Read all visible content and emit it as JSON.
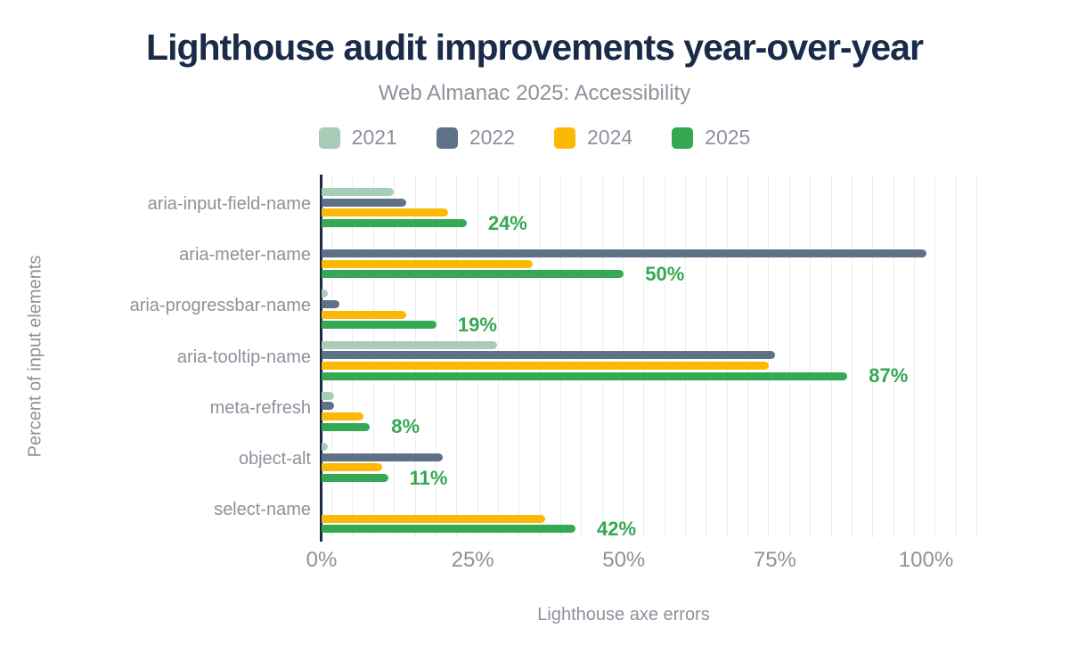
{
  "chart_data": {
    "type": "bar",
    "orientation": "horizontal",
    "title": "Lighthouse audit improvements year-over-year",
    "subtitle": "Web Almanac 2025: Accessibility",
    "categories": [
      "aria-input-field-name",
      "aria-meter-name",
      "aria-progressbar-name",
      "aria-tooltip-name",
      "meta-refresh",
      "object-alt",
      "select-name"
    ],
    "series": [
      {
        "name": "2021",
        "color": "#a9ccb8",
        "values": [
          12,
          null,
          1,
          29,
          2,
          1,
          null
        ]
      },
      {
        "name": "2022",
        "color": "#5f7186",
        "values": [
          14,
          100,
          3,
          75,
          2,
          20,
          null
        ]
      },
      {
        "name": "2024",
        "color": "#fbb905",
        "values": [
          21,
          35,
          14,
          74,
          7,
          10,
          37
        ]
      },
      {
        "name": "2025",
        "color": "#34a853",
        "values": [
          24,
          50,
          19,
          87,
          8,
          11,
          42
        ]
      }
    ],
    "annotations": {
      "series": "2025",
      "labels": [
        "24%",
        "50%",
        "19%",
        "87%",
        "8%",
        "11%",
        "42%"
      ],
      "color": "#34a853"
    },
    "x_ticks": [
      {
        "label": "0%",
        "value": 0
      },
      {
        "label": "25%",
        "value": 25
      },
      {
        "label": "50%",
        "value": 50
      },
      {
        "label": "75%",
        "value": 75
      },
      {
        "label": "100%",
        "value": 100
      }
    ],
    "xlim": [
      0,
      100
    ],
    "xlabel": "Lighthouse axe errors",
    "ylabel": "Percent of input elements",
    "legend_position": "top",
    "grid": "minor-vertical"
  },
  "colors": {
    "title": "#1a2b49",
    "axis": "#1c2b44",
    "muted_text": "#8c929b",
    "gridline": "#ededee",
    "background": "#ffffff",
    "annotation": "#34a853"
  }
}
